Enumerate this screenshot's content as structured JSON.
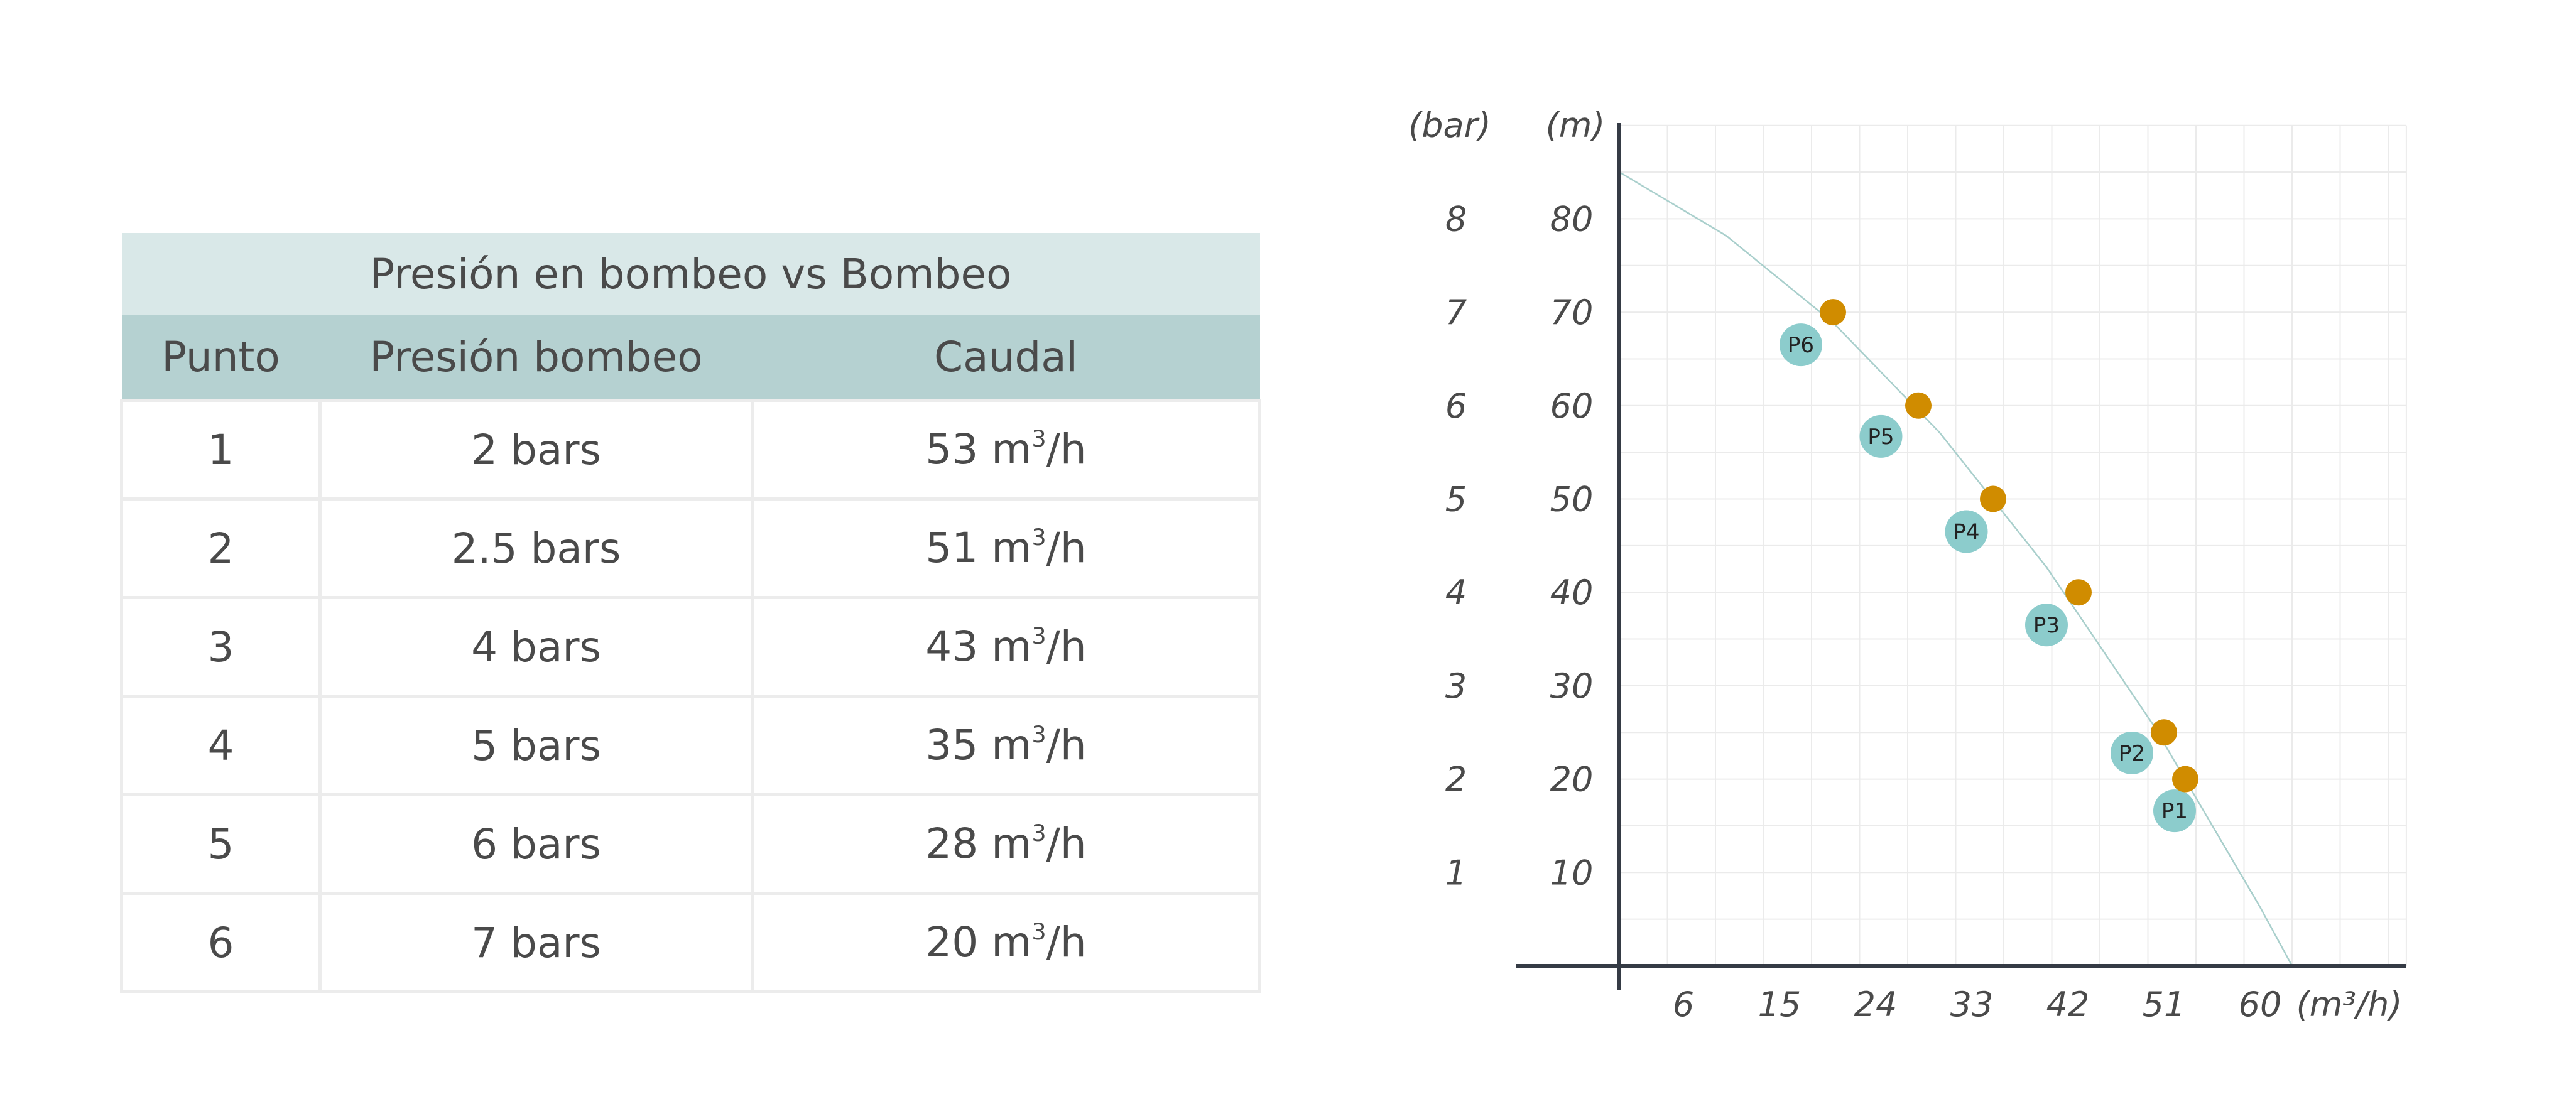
{
  "table": {
    "title": "Presión en bombeo vs Bombeo",
    "headers": [
      "Punto",
      "Presión bombeo",
      "Caudal"
    ],
    "unit_base": "m",
    "unit_exp": "3",
    "unit_tail": "/h",
    "rows": [
      {
        "punto": "1",
        "presion": "2 bars",
        "caudal": "53"
      },
      {
        "punto": "2",
        "presion": "2.5 bars",
        "caudal": "51"
      },
      {
        "punto": "3",
        "presion": "4 bars",
        "caudal": "43"
      },
      {
        "punto": "4",
        "presion": "5 bars",
        "caudal": "35"
      },
      {
        "punto": "5",
        "presion": "6 bars",
        "caudal": "28"
      },
      {
        "punto": "6",
        "presion": "7 bars",
        "caudal": "20"
      }
    ]
  },
  "chart_data": {
    "type": "scatter",
    "y_label_bar": "(bar)",
    "y_label_m": "(m)",
    "x_label": "(m³/h)",
    "x_ticks": [
      6,
      15,
      24,
      33,
      42,
      51,
      60
    ],
    "y_ticks_m": [
      10,
      20,
      30,
      40,
      50,
      60,
      70,
      80
    ],
    "y_ticks_bar": [
      1,
      2,
      3,
      4,
      5,
      6,
      7,
      8
    ],
    "xlim": [
      0,
      73.7
    ],
    "ylim": [
      0,
      90
    ],
    "grid": true,
    "points": [
      {
        "label": "P1",
        "x": 53,
        "y": 20,
        "label_x": 52,
        "label_y": 16.6
      },
      {
        "label": "P2",
        "x": 51,
        "y": 25,
        "label_x": 48,
        "label_y": 22.8
      },
      {
        "label": "P3",
        "x": 43,
        "y": 40,
        "label_x": 40,
        "label_y": 36.5
      },
      {
        "label": "P4",
        "x": 35,
        "y": 50,
        "label_x": 32.5,
        "label_y": 46.5
      },
      {
        "label": "P5",
        "x": 28,
        "y": 60,
        "label_x": 24.5,
        "label_y": 56.7
      },
      {
        "label": "P6",
        "x": 20,
        "y": 70,
        "label_x": 17,
        "label_y": 66.5
      }
    ],
    "curve": [
      [
        0,
        85
      ],
      [
        10,
        78.2
      ],
      [
        20,
        68.9
      ],
      [
        30,
        57.1
      ],
      [
        40,
        42.7
      ],
      [
        50,
        25.8
      ],
      [
        60,
        6.3
      ],
      [
        63,
        0
      ]
    ],
    "colors": {
      "point": "#d08c00",
      "label": "#8ccccc",
      "curve": "#a9cfcc",
      "axis": "#353b45",
      "grid": "#ebebeb"
    }
  }
}
